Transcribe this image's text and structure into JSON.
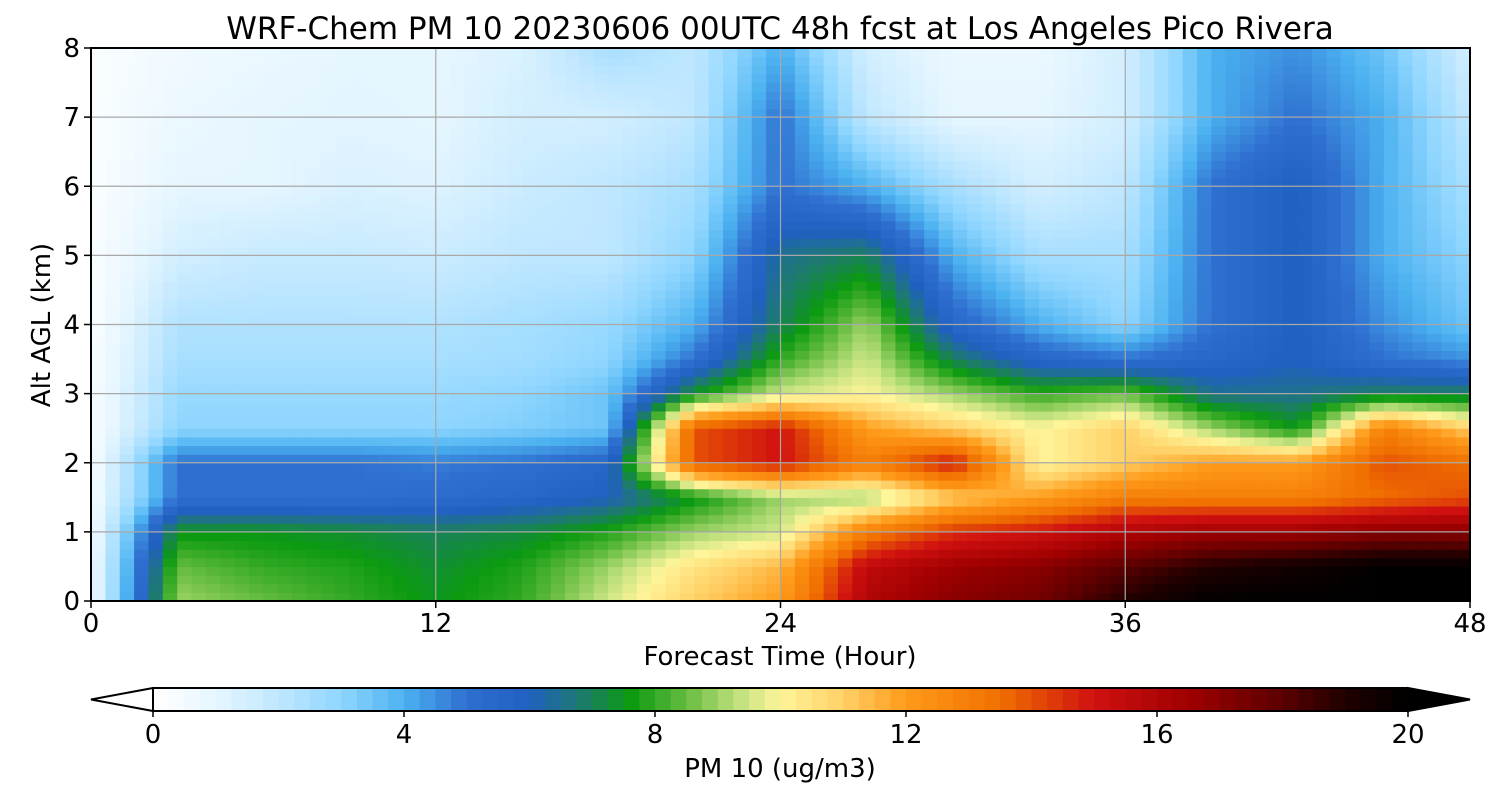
{
  "chart_data": {
    "type": "heatmap",
    "title": "WRF-Chem PM 10  20230606 00UTC 48h fcst at Los Angeles Pico Rivera",
    "xlabel": "Forecast Time (Hour)",
    "ylabel": "Alt AGL (km)",
    "x_ticks": [
      "0",
      "12",
      "24",
      "36",
      "48"
    ],
    "y_ticks": [
      "0",
      "1",
      "2",
      "3",
      "4",
      "5",
      "6",
      "7",
      "8"
    ],
    "xlim": [
      0,
      48
    ],
    "ylim": [
      0,
      8
    ],
    "grid": true,
    "x": [
      0,
      3,
      6,
      9,
      12,
      15,
      18,
      21,
      24,
      27,
      30,
      33,
      36,
      39,
      42,
      45,
      48
    ],
    "y": [
      0,
      0.5,
      1,
      1.5,
      2,
      2.5,
      3,
      3.5,
      4,
      5,
      6,
      7,
      8
    ],
    "z": [
      [
        0.5,
        9,
        8.5,
        8,
        7.5,
        8,
        9.5,
        11,
        12,
        16,
        17,
        17.5,
        19,
        20,
        20,
        20,
        20
      ],
      [
        0.5,
        8.5,
        8,
        7.8,
        7.3,
        7.8,
        9,
        10.5,
        11.5,
        15.5,
        16.5,
        17,
        18,
        19,
        19.5,
        20,
        20
      ],
      [
        0.4,
        7.5,
        7.5,
        7.3,
        7,
        7.2,
        7.8,
        9,
        9.5,
        13,
        14.5,
        15,
        16,
        16.5,
        16.5,
        17,
        17
      ],
      [
        0.4,
        5,
        5,
        5,
        5.2,
        5.5,
        6,
        7.5,
        9,
        9,
        11,
        12,
        13,
        13,
        13,
        13.5,
        14
      ],
      [
        0.3,
        5,
        5,
        5,
        4.8,
        5,
        5.5,
        14,
        15,
        13,
        15,
        10,
        11,
        12,
        12,
        14,
        13.5
      ],
      [
        0.3,
        3,
        3,
        3,
        3,
        3.2,
        3.5,
        14,
        15,
        12,
        11,
        10,
        11,
        9,
        7.5,
        13,
        11
      ],
      [
        0.3,
        2.8,
        2.8,
        2.8,
        2.8,
        3,
        3.5,
        7.5,
        9.5,
        10,
        9,
        8,
        8.5,
        6.5,
        6.5,
        7,
        7
      ],
      [
        0.3,
        2.5,
        2.5,
        2.5,
        2.5,
        2.6,
        3,
        5,
        8,
        9.5,
        7,
        5.5,
        5,
        5.5,
        6,
        5,
        4.5
      ],
      [
        0.2,
        2.3,
        2.3,
        2.3,
        2.3,
        2.5,
        2.8,
        4,
        7,
        9,
        5.5,
        4,
        3,
        5,
        6,
        4.5,
        3.5
      ],
      [
        0.2,
        1.5,
        1.8,
        1.8,
        1.7,
        2,
        2,
        3,
        6.5,
        7,
        4,
        2.5,
        2.5,
        5,
        6,
        4,
        3
      ],
      [
        0.2,
        1,
        1,
        1.3,
        1.2,
        1.7,
        2,
        2.5,
        5,
        4,
        2.5,
        1.5,
        2,
        5,
        6,
        4,
        2.5
      ],
      [
        0.2,
        0.8,
        1,
        1.1,
        1,
        1.5,
        1.5,
        2,
        5,
        2,
        1,
        1,
        1.5,
        4,
        5,
        4,
        2
      ],
      [
        0.2,
        0.6,
        0.8,
        1,
        1,
        1.3,
        2.5,
        2,
        4,
        1.5,
        0.8,
        0.8,
        1.5,
        4,
        4.5,
        3.5,
        1.5
      ]
    ],
    "colorbar": {
      "label": "PM 10  (ug/m3)",
      "ticks": [
        "0",
        "4",
        "8",
        "12",
        "16",
        "20"
      ],
      "range": [
        0,
        20
      ],
      "extend": "both",
      "colors": [
        {
          "v": 0,
          "c": "#ffffff"
        },
        {
          "v": 1,
          "c": "#e6f6ff"
        },
        {
          "v": 2,
          "c": "#bfe7ff"
        },
        {
          "v": 3,
          "c": "#8fd6ff"
        },
        {
          "v": 4,
          "c": "#4bb1f0"
        },
        {
          "v": 5,
          "c": "#2f6fd0"
        },
        {
          "v": 6,
          "c": "#2060c0"
        },
        {
          "v": 6.8,
          "c": "#1e7a70"
        },
        {
          "v": 7.6,
          "c": "#0b9a10"
        },
        {
          "v": 8.4,
          "c": "#5cb83a"
        },
        {
          "v": 9.3,
          "c": "#bde07c"
        },
        {
          "v": 10,
          "c": "#fff59a"
        },
        {
          "v": 11,
          "c": "#ffd066"
        },
        {
          "v": 12,
          "c": "#ff9b1a"
        },
        {
          "v": 13.5,
          "c": "#f07000"
        },
        {
          "v": 15,
          "c": "#d01010"
        },
        {
          "v": 16.5,
          "c": "#a00000"
        },
        {
          "v": 18,
          "c": "#5a0000"
        },
        {
          "v": 19,
          "c": "#200000"
        },
        {
          "v": 20,
          "c": "#000000"
        }
      ]
    }
  }
}
